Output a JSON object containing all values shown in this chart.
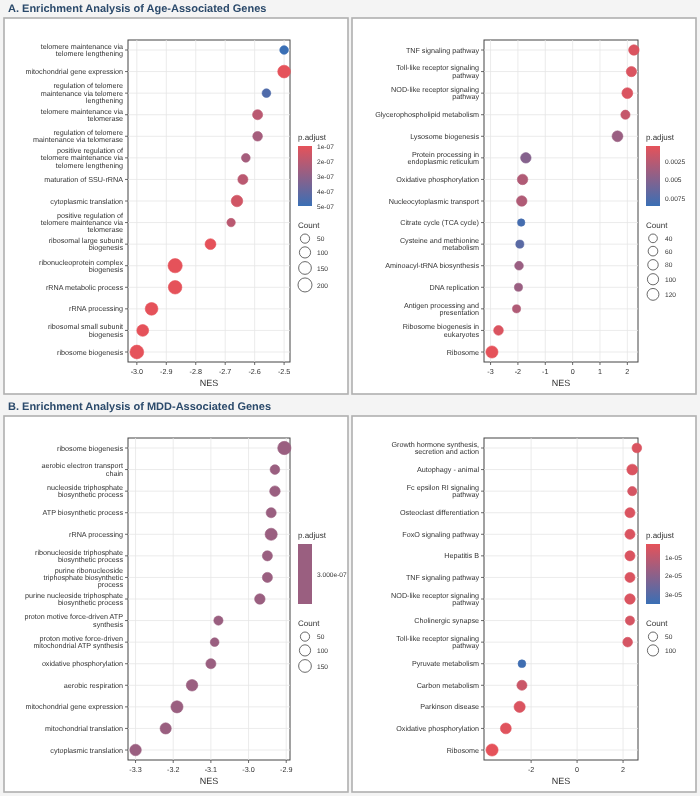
{
  "chart_data": [
    {
      "type": "scatter",
      "title": "A. Enrichment Analysis of Age-Associated Genes",
      "orientation": "horizontal",
      "xlabel": "NES",
      "clabel": "p.adjust",
      "legend_title": "Count",
      "grid": true,
      "categories": [
        "telomere maintenance via telomere lengthening",
        "mitochondrial gene expression",
        "regulation of telomere maintenance via telomere lengthening",
        "telomere maintenance via telomerase",
        "regulation of telomere maintenance via telomerase",
        "positive regulation of telomere maintenance via telomere lengthening",
        "maturation of SSU-rRNA",
        "cytoplasmic translation",
        "positive regulation of telomere maintenance via telomerase",
        "ribosomal large subunit biogenesis",
        "ribonucleoprotein complex biogenesis",
        "rRNA metabolic process",
        "rRNA processing",
        "ribosomal small subunit biogenesis",
        "ribosome biogenesis"
      ],
      "values": [
        -2.5,
        -2.5,
        -2.56,
        -2.59,
        -2.59,
        -2.63,
        -2.64,
        -2.66,
        -2.68,
        -2.75,
        -2.87,
        -2.87,
        -2.95,
        -2.98,
        -3.0
      ],
      "sizes": [
        40,
        150,
        40,
        70,
        60,
        40,
        70,
        110,
        35,
        90,
        210,
        180,
        150,
        120,
        190
      ],
      "cvalues": [
        5e-07,
        1e-07,
        4.5e-07,
        2e-07,
        2.5e-07,
        2.5e-07,
        2e-07,
        1.5e-07,
        2e-07,
        1e-07,
        1e-07,
        1e-07,
        1e-07,
        1e-07,
        1e-07
      ],
      "size_legend": [
        50,
        100,
        150,
        200
      ],
      "clim": [
        1e-07,
        5e-07
      ],
      "cticks": [
        {
          "value": 1e-07,
          "label": "1e-07"
        },
        {
          "value": 2e-07,
          "label": "2e-07"
        },
        {
          "value": 3e-07,
          "label": "3e-07"
        },
        {
          "value": 4e-07,
          "label": "4e-07"
        },
        {
          "value": 5e-07,
          "label": "5e-07"
        }
      ],
      "xlim": [
        -3.03,
        -2.48
      ],
      "xticks": [
        {
          "value": -3.0,
          "label": "-3.0"
        },
        -2.9,
        -2.8,
        -2.7,
        -2.6,
        -2.5
      ]
    },
    {
      "type": "scatter",
      "orientation": "horizontal",
      "xlabel": "NES",
      "clabel": "p.adjust",
      "legend_title": "Count",
      "grid": true,
      "categories": [
        "TNF signaling pathway",
        "Toll-like receptor signaling pathway",
        "NOD-like receptor signaling pathway",
        "Glycerophospholipid metabolism",
        "Lysosome biogenesis",
        "Protein processing in endoplasmic reticulum",
        "Oxidative phosphorylation",
        "Nucleocytoplasmic transport",
        "Citrate cycle (TCA cycle)",
        "Cysteine and methionine metabolism",
        "Aminoacyl-tRNA biosynthesis",
        "DNA replication",
        "Antigen processing and presentation",
        "Ribosome biogenesis in eukaryotes",
        "Ribosome"
      ],
      "values": [
        2.24,
        2.15,
        2.0,
        1.93,
        1.64,
        -1.71,
        -1.83,
        -1.86,
        -1.88,
        -1.93,
        -1.96,
        -1.98,
        -2.05,
        -2.71,
        -2.95
      ],
      "sizes": [
        80,
        75,
        90,
        50,
        90,
        80,
        80,
        80,
        20,
        30,
        40,
        30,
        30,
        60,
        130
      ],
      "cvalues": [
        0.001,
        0.001,
        0.001,
        0.002,
        0.004,
        0.005,
        0.003,
        0.003,
        0.008,
        0.007,
        0.004,
        0.004,
        0.003,
        0.001,
        0.0005
      ],
      "size_legend": [
        40,
        60,
        80,
        100,
        120
      ],
      "clim": [
        0.0005,
        0.0085
      ],
      "cticks": [
        0.0025,
        0.005,
        0.0075
      ],
      "xlim": [
        -3.24,
        2.39
      ],
      "xticks": [
        -3,
        -2,
        -1,
        0,
        1,
        2
      ]
    },
    {
      "type": "scatter",
      "title": "B. Enrichment Analysis of MDD-Associated Genes",
      "orientation": "horizontal",
      "xlabel": "NES",
      "clabel": "p.adjust",
      "legend_title": "Count",
      "grid": true,
      "color": "#9a5f80",
      "annotations": [
        "3.000e-07"
      ],
      "categories": [
        "ribosome biogenesis",
        "aerobic electron transport chain",
        "nucleoside triphosphate biosynthetic process",
        "ATP biosynthetic process",
        "rRNA processing",
        "ribonucleoside triphosphate biosynthetic process",
        "purine ribonucleoside triphosphate biosynthetic process",
        "purine nucleoside triphosphate biosynthetic process",
        "proton motive force-driven ATP synthesis",
        "proton motive force-driven mitochondrial ATP synthesis",
        "oxidative phosphorylation",
        "aerobic respiration",
        "mitochondrial gene expression",
        "mitochondrial translation",
        "cytoplasmic translation"
      ],
      "values": [
        -2.905,
        -2.93,
        -2.93,
        -2.94,
        -2.94,
        -2.95,
        -2.95,
        -2.97,
        -3.08,
        -3.09,
        -3.1,
        -3.15,
        -3.19,
        -3.22,
        -3.3
      ],
      "sizes": [
        170,
        60,
        80,
        70,
        130,
        70,
        70,
        80,
        50,
        40,
        70,
        110,
        130,
        100,
        110
      ],
      "size_legend": [
        50,
        100,
        150
      ],
      "xlim": [
        -3.32,
        -2.89
      ],
      "xticks": [
        {
          "value": -3.3,
          "label": "-3.3"
        },
        {
          "value": -3.2,
          "label": "-3.2"
        },
        {
          "value": -3.1,
          "label": "-3.1"
        },
        {
          "value": -3.0,
          "label": "-3.0"
        },
        {
          "value": -2.9,
          "label": "-2.9"
        }
      ]
    },
    {
      "type": "scatter",
      "orientation": "horizontal",
      "xlabel": "NES",
      "clabel": "p.adjust",
      "legend_title": "Count",
      "grid": true,
      "categories": [
        "Growth hormone synthesis, secretion and action",
        "Autophagy - animal",
        "Fc epsilon RI signaling pathway",
        "Osteoclast differentiation",
        "FoxO signaling pathway",
        "Hepatitis B",
        "TNF signaling pathway",
        "NOD-like receptor signaling pathway",
        "Cholinergic synapse",
        "Toll-like receptor signaling pathway",
        "Pyruvate metabolism",
        "Carbon metabolism",
        "Parkinson disease",
        "Oxidative phosphorylation",
        "Ribosome"
      ],
      "values": [
        2.6,
        2.4,
        2.4,
        2.3,
        2.3,
        2.3,
        2.3,
        2.3,
        2.3,
        2.2,
        -2.4,
        -2.4,
        -2.5,
        -3.1,
        -3.7
      ],
      "sizes": [
        60,
        90,
        50,
        70,
        70,
        70,
        70,
        80,
        50,
        60,
        25,
        70,
        100,
        90,
        130
      ],
      "cvalues": [
        5e-06,
        5e-06,
        6e-06,
        5e-06,
        5e-06,
        5e-06,
        5e-06,
        5e-06,
        6e-06,
        6e-06,
        3.4e-05,
        8e-06,
        5e-06,
        4e-06,
        3e-06
      ],
      "size_legend": [
        50,
        100
      ],
      "clim": [
        3e-06,
        3.5e-05
      ],
      "cticks": [
        {
          "value": 1e-05,
          "label": "1e-05"
        },
        {
          "value": 2e-05,
          "label": "2e-05"
        },
        {
          "value": 3e-05,
          "label": "3e-05"
        }
      ],
      "xlim": [
        -4.05,
        2.65
      ],
      "xticks": [
        -2,
        0,
        2
      ]
    }
  ]
}
